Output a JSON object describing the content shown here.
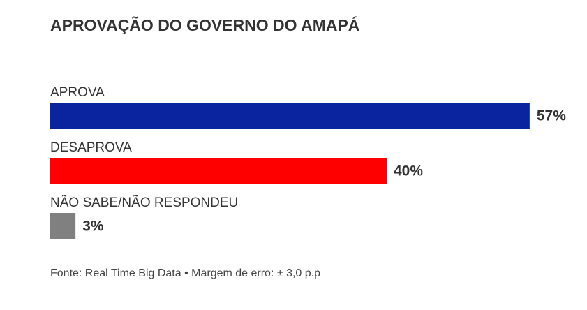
{
  "chart_data": {
    "type": "hbar",
    "title": "APROVAÇÃO DO GOVERNO DO AMAPÁ",
    "categories": [
      "APROVA",
      "DESAPROVA",
      "NÃO SABE/NÃO RESPONDEU"
    ],
    "values": [
      57,
      40,
      3
    ],
    "value_labels": [
      "57%",
      "40%",
      "3%"
    ],
    "colors": [
      "#0a24a0",
      "#ff0000",
      "#808080"
    ],
    "note": "Fonte: Real Time Big Data • Margem de erro: ± 3,0 p.p"
  }
}
